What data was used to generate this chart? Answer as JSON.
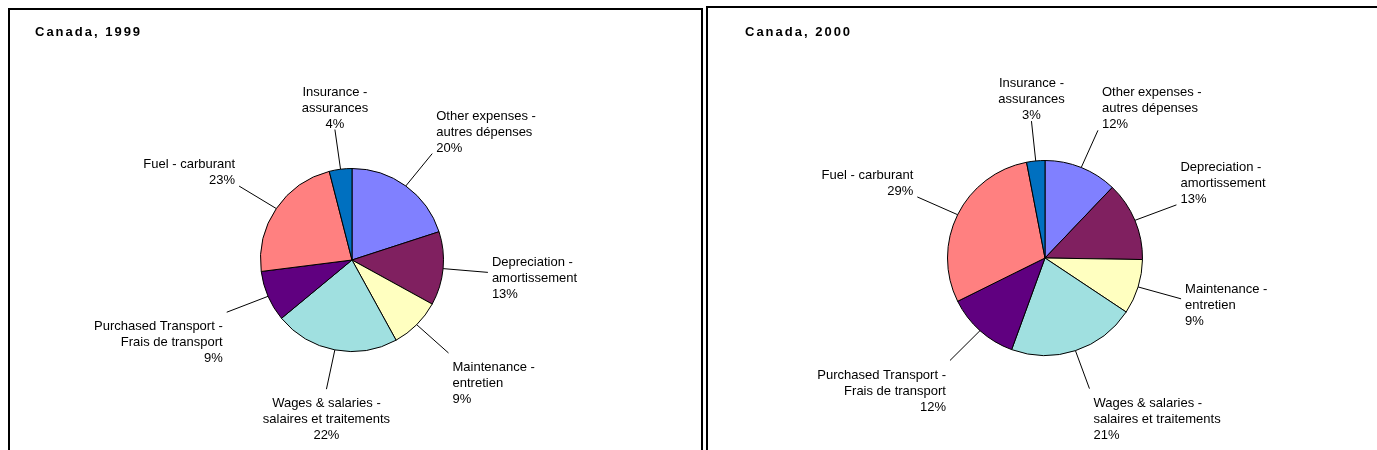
{
  "chart_data": [
    {
      "type": "pie",
      "title": "Canada, 1999",
      "categories": [
        "Other expenses - autres dépenses",
        "Depreciation - amortissement",
        "Maintenance - entretien",
        "Wages & salaries - salaires et traitements",
        "Purchased Transport - Frais de transport",
        "Fuel - carburant",
        "Insurance - assurances"
      ],
      "values": [
        20,
        13,
        9,
        22,
        9,
        23,
        4
      ],
      "value_labels": [
        "20%",
        "13%",
        "9%",
        "22%",
        "9%",
        "23%",
        "4%"
      ],
      "colors": [
        "#8080ff",
        "#802060",
        "#ffffc0",
        "#a0e0e0",
        "#600080",
        "#ff8080",
        "#0070c0"
      ],
      "legend": false
    },
    {
      "type": "pie",
      "title": "Canada, 2000",
      "categories": [
        "Other expenses - autres dépenses",
        "Depreciation - amortissement",
        "Maintenance - entretien",
        "Wages & salaries - salaires et traitements",
        "Purchased Transport - Frais de transport",
        "Fuel - carburant",
        "Insurance - assurances"
      ],
      "values": [
        12,
        13,
        9,
        21,
        12,
        29,
        3
      ],
      "value_labels": [
        "12%",
        "13%",
        "9%",
        "21%",
        "12%",
        "29%",
        "3%"
      ],
      "colors": [
        "#8080ff",
        "#802060",
        "#ffffc0",
        "#a0e0e0",
        "#600080",
        "#ff8080",
        "#0070c0"
      ],
      "legend": false
    }
  ]
}
